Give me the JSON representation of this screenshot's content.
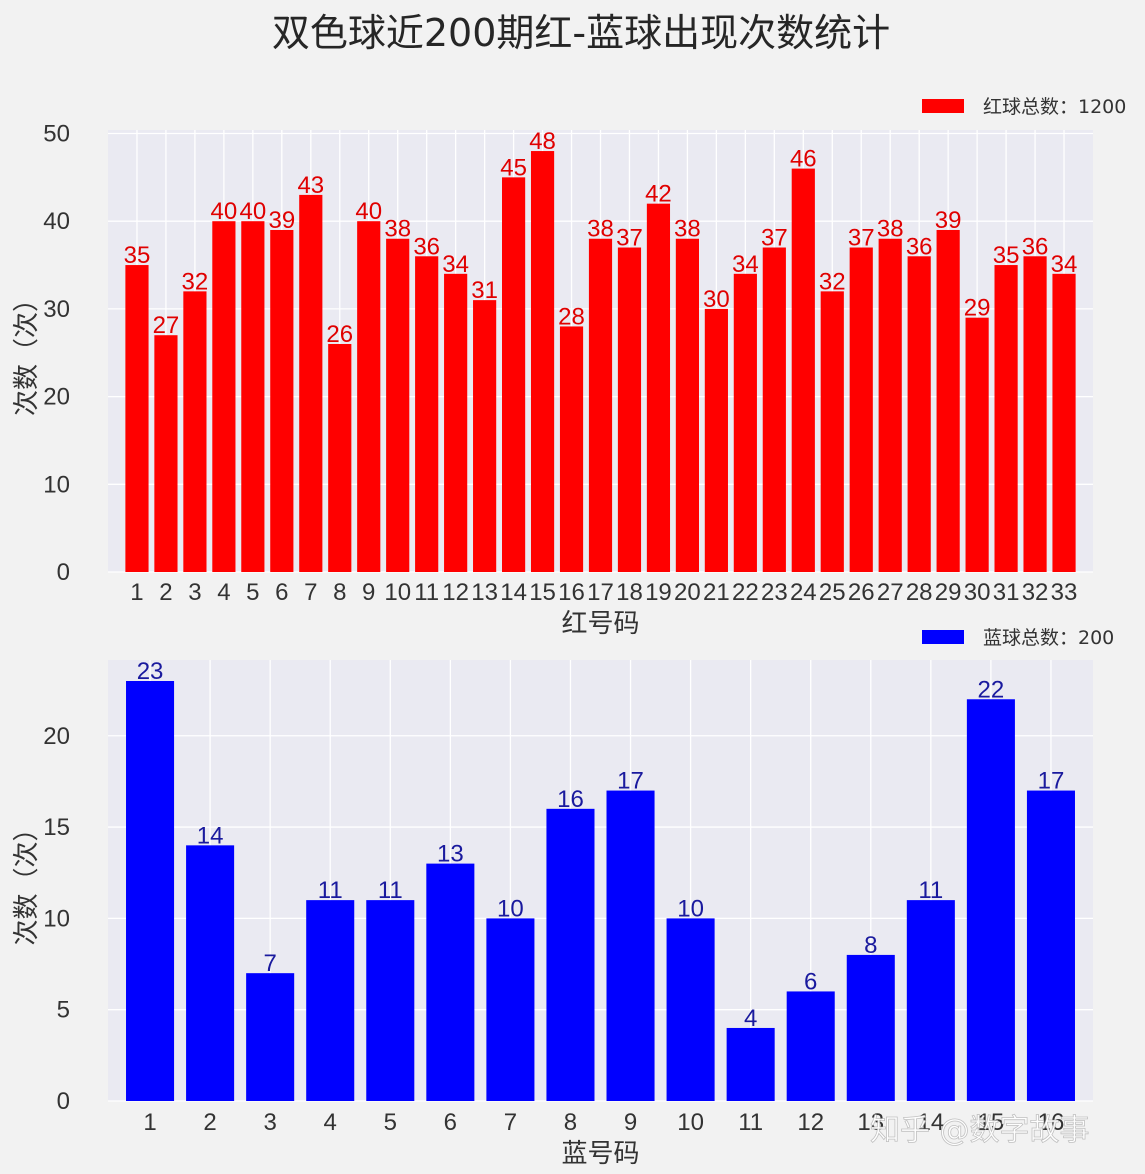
{
  "title": "双色球近200期红-蓝球出现次数统计",
  "watermark": "知乎 @数字故事",
  "colors": {
    "figure_bg": "#f2f2f2",
    "axes_bg": "#eaeaf2",
    "grid": "#ffffff"
  },
  "chart_data": [
    {
      "type": "bar",
      "categories": [
        "1",
        "2",
        "3",
        "4",
        "5",
        "6",
        "7",
        "8",
        "9",
        "10",
        "11",
        "12",
        "13",
        "14",
        "15",
        "16",
        "17",
        "18",
        "19",
        "20",
        "21",
        "22",
        "23",
        "24",
        "25",
        "26",
        "27",
        "28",
        "29",
        "30",
        "31",
        "32",
        "33"
      ],
      "series": [
        {
          "name": "红球总数：1200",
          "values": [
            35,
            27,
            32,
            40,
            40,
            39,
            43,
            26,
            40,
            38,
            36,
            34,
            31,
            45,
            48,
            28,
            38,
            37,
            42,
            38,
            30,
            34,
            37,
            46,
            32,
            37,
            38,
            36,
            39,
            29,
            35,
            36,
            34
          ],
          "color": "#ff0000",
          "label_color": "#e00000"
        }
      ],
      "xlabel": "红号码",
      "ylabel": "次数（次）",
      "ylim": [
        0,
        50.4
      ],
      "yticks": [
        0,
        10,
        20,
        30,
        40,
        50
      ],
      "grid": true,
      "legend_position": "top-right"
    },
    {
      "type": "bar",
      "categories": [
        "1",
        "2",
        "3",
        "4",
        "5",
        "6",
        "7",
        "8",
        "9",
        "10",
        "11",
        "12",
        "13",
        "14",
        "15",
        "16"
      ],
      "series": [
        {
          "name": "蓝球总数：200",
          "values": [
            23,
            14,
            7,
            11,
            11,
            13,
            10,
            16,
            17,
            10,
            4,
            6,
            8,
            11,
            22,
            17
          ],
          "color": "#0000ff",
          "label_color": "#1a1a9e"
        }
      ],
      "xlabel": "蓝号码",
      "ylabel": "次数（次）",
      "ylim": [
        0,
        24.15
      ],
      "yticks": [
        0,
        5,
        10,
        15,
        20
      ],
      "grid": true,
      "legend_position": "top-right"
    }
  ]
}
